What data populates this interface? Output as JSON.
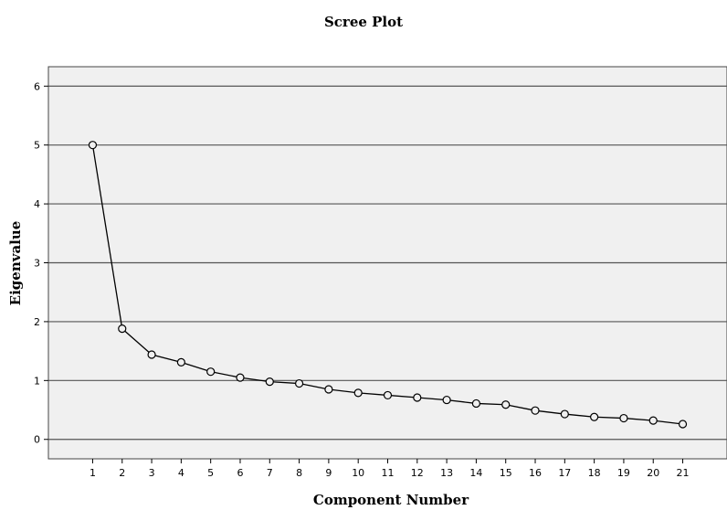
{
  "chart_data": {
    "type": "line",
    "title": "Scree Plot",
    "xlabel": "Component Number",
    "ylabel": "Eigenvalue",
    "x": [
      1,
      2,
      3,
      4,
      5,
      6,
      7,
      8,
      9,
      10,
      11,
      12,
      13,
      14,
      15,
      16,
      17,
      18,
      19,
      20,
      21
    ],
    "x_tick_labels": [
      "1",
      "2",
      "3",
      "4",
      "5",
      "6",
      "7",
      "8",
      "9",
      "10",
      "11",
      "12",
      "13",
      "14",
      "15",
      "16",
      "17",
      "18",
      "19",
      "20",
      "21"
    ],
    "series": [
      {
        "values": [
          5.0,
          1.88,
          1.44,
          1.31,
          1.15,
          1.05,
          0.98,
          0.95,
          0.85,
          0.79,
          0.75,
          0.71,
          0.67,
          0.61,
          0.59,
          0.49,
          0.43,
          0.38,
          0.36,
          0.32,
          0.26
        ]
      }
    ],
    "y_ticks": [
      0,
      1,
      2,
      3,
      4,
      5,
      6
    ],
    "y_tick_labels": [
      "0",
      "1",
      "2",
      "3",
      "4",
      "5",
      "6"
    ],
    "xlim": [
      -0.5,
      22.5
    ],
    "ylim": [
      -0.33,
      6.33
    ],
    "grid": "horizontal",
    "legend": "none",
    "colors": {
      "plot_background": "#f0f0f0",
      "gridline": "#555555",
      "line": "#000000",
      "marker_edge": "#000000"
    }
  }
}
